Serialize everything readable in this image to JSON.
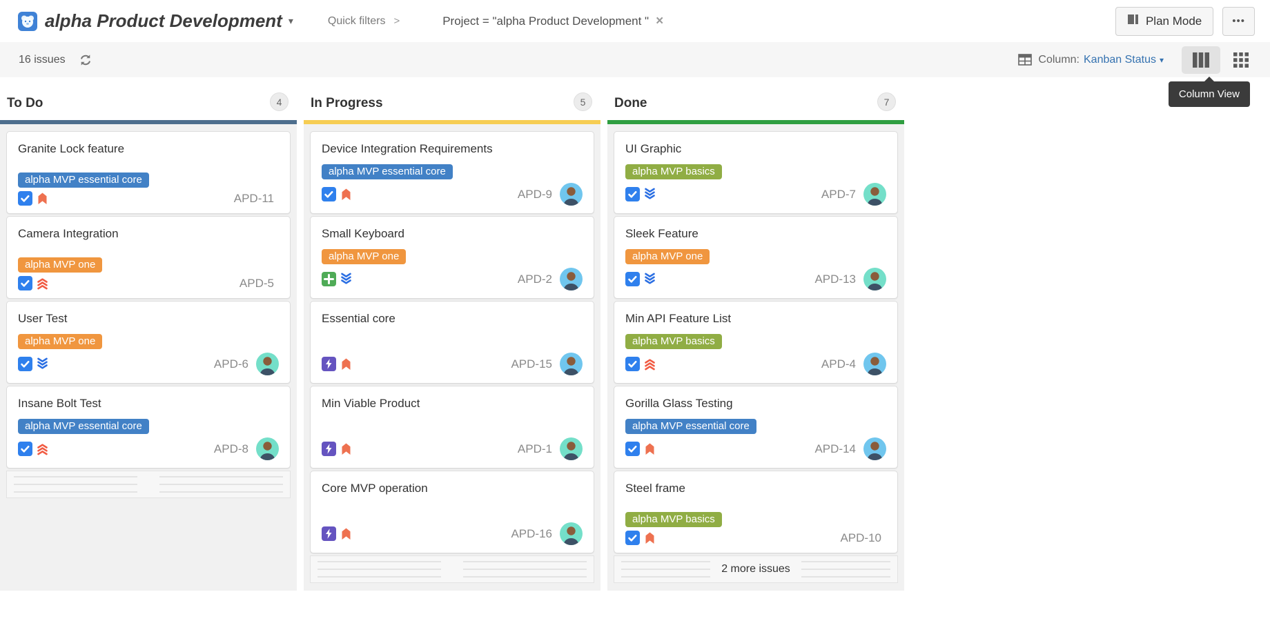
{
  "header": {
    "title": "alpha Product Development",
    "title_caret": "▾",
    "quick_filters": "Quick filters",
    "quick_filters_chevron": ">",
    "filter_text": "Project = \"alpha Product Development \"",
    "filter_dismiss": "×",
    "plan_mode": "Plan Mode",
    "more_menu": "•••"
  },
  "toolbar": {
    "issues_count": "16 issues",
    "column_label": "Column:",
    "column_value": "Kanban Status",
    "column_caret": "▾",
    "column_view_tooltip": "Column View"
  },
  "icons": {
    "project_avatar": "project-avatar-bear-icon",
    "refresh": "refresh-icon",
    "table": "table-icon",
    "column_view": "column-view-icon",
    "grid_view": "grid-view-icon",
    "plan_mode": "plan-mode-columns-icon",
    "task": "task-checkbox-icon",
    "feature": "new-feature-plus-icon",
    "epic": "epic-lightning-icon",
    "priority_high": "priority-high-icon",
    "priority_highest": "priority-highest-icon",
    "priority_lowest": "priority-lowest-icon"
  },
  "colors": {
    "accent_link": "#3572b0",
    "tooltip_bg": "#3b3b3b",
    "labels": {
      "blue": "#4281c6",
      "orange": "#f0963f",
      "green": "#90ad44"
    },
    "avatars": {
      "teal": "#74dfc9",
      "blue": "#70c6ee"
    },
    "types": {
      "task": "#2f80ed",
      "feature": "#4fab57",
      "epic": "#6554c0"
    },
    "priorities": {
      "high": "#ee7150",
      "highest": "#f15b43",
      "lowest": "#2b6fe3"
    }
  },
  "board": {
    "columns": [
      {
        "name": "To Do",
        "count": "4",
        "status_color": "#4d6e8d",
        "cards": [
          {
            "title": "Granite Lock feature",
            "key": "APD-11",
            "type": "task",
            "priority": "high",
            "label": {
              "text": "alpha MVP essential core",
              "color": "blue"
            },
            "avatar": null
          },
          {
            "title": "Camera Integration",
            "key": "APD-5",
            "type": "task",
            "priority": "highest",
            "label": {
              "text": "alpha MVP one",
              "color": "orange"
            },
            "avatar": null
          },
          {
            "title": "User Test",
            "key": "APD-6",
            "type": "task",
            "priority": "lowest",
            "label": {
              "text": "alpha MVP one",
              "color": "orange"
            },
            "avatar": "teal"
          },
          {
            "title": "Insane Bolt Test",
            "key": "APD-8",
            "type": "task",
            "priority": "highest",
            "label": {
              "text": "alpha MVP essential core",
              "color": "blue"
            },
            "avatar": "teal"
          }
        ]
      },
      {
        "name": "In Progress",
        "count": "5",
        "status_color": "#f6cd53",
        "cards": [
          {
            "title": "Device Integration Requirements",
            "key": "APD-9",
            "type": "task",
            "priority": "high",
            "label": {
              "text": "alpha MVP essential core",
              "color": "blue"
            },
            "avatar": "blue"
          },
          {
            "title": "Small Keyboard",
            "key": "APD-2",
            "type": "feature",
            "priority": "lowest",
            "label": {
              "text": "alpha MVP one",
              "color": "orange"
            },
            "avatar": "blue"
          },
          {
            "title": "Essential core",
            "key": "APD-15",
            "type": "epic",
            "priority": "high",
            "label": null,
            "avatar": "blue"
          },
          {
            "title": "Min Viable Product",
            "key": "APD-1",
            "type": "epic",
            "priority": "high",
            "label": null,
            "avatar": "teal"
          },
          {
            "title": "Core MVP operation",
            "key": "APD-16",
            "type": "epic",
            "priority": "high",
            "label": null,
            "avatar": "teal"
          }
        ]
      },
      {
        "name": "Done",
        "count": "7",
        "status_color": "#2f9e41",
        "more_label": "2 more issues",
        "cards": [
          {
            "title": "UI Graphic",
            "key": "APD-7",
            "type": "task",
            "priority": "lowest",
            "label": {
              "text": "alpha MVP basics",
              "color": "green"
            },
            "avatar": "teal"
          },
          {
            "title": "Sleek Feature",
            "key": "APD-13",
            "type": "task",
            "priority": "lowest",
            "label": {
              "text": "alpha MVP one",
              "color": "orange"
            },
            "avatar": "teal"
          },
          {
            "title": "Min API Feature List",
            "key": "APD-4",
            "type": "task",
            "priority": "highest",
            "label": {
              "text": "alpha MVP basics",
              "color": "green"
            },
            "avatar": "blue"
          },
          {
            "title": "Gorilla Glass Testing",
            "key": "APD-14",
            "type": "task",
            "priority": "high",
            "label": {
              "text": "alpha MVP essential core",
              "color": "blue"
            },
            "avatar": "blue"
          },
          {
            "title": "Steel frame",
            "key": "APD-10",
            "type": "task",
            "priority": "high",
            "label": {
              "text": "alpha MVP basics",
              "color": "green"
            },
            "avatar": null
          }
        ]
      }
    ]
  }
}
